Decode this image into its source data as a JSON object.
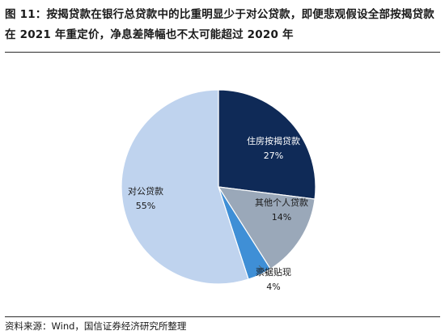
{
  "title": "图 11：按揭贷款在银行总贷款中的比重明显少于对公贷款，即便悲观假设全部按揭贷款在 2021 年重定价，净息差降幅也不太可能超过 2020 年",
  "source": "资料来源：Wind，国信证券经济研究所整理",
  "chart_data": {
    "type": "pie",
    "title": "图 11：按揭贷款在银行总贷款中的比重明显少于对公贷款，即便悲观假设全部按揭贷款在 2021 年重定价，净息差降幅也不太可能超过 2020 年",
    "slices": [
      {
        "label": "住房按揭贷款",
        "value": 27,
        "display": "27%",
        "color": "#0f2a57",
        "label_color": "#ffffff"
      },
      {
        "label": "其他个人贷款",
        "value": 14,
        "display": "14%",
        "color": "#9aa8b9",
        "label_color": "#1a1a1a"
      },
      {
        "label": "票据贴现",
        "value": 4,
        "display": "4%",
        "color": "#3f8fd6",
        "label_color": "#1a1a1a"
      },
      {
        "label": "对公贷款",
        "value": 55,
        "display": "55%",
        "color": "#bfd3ee",
        "label_color": "#1a1a1a"
      }
    ],
    "legend": "none"
  }
}
